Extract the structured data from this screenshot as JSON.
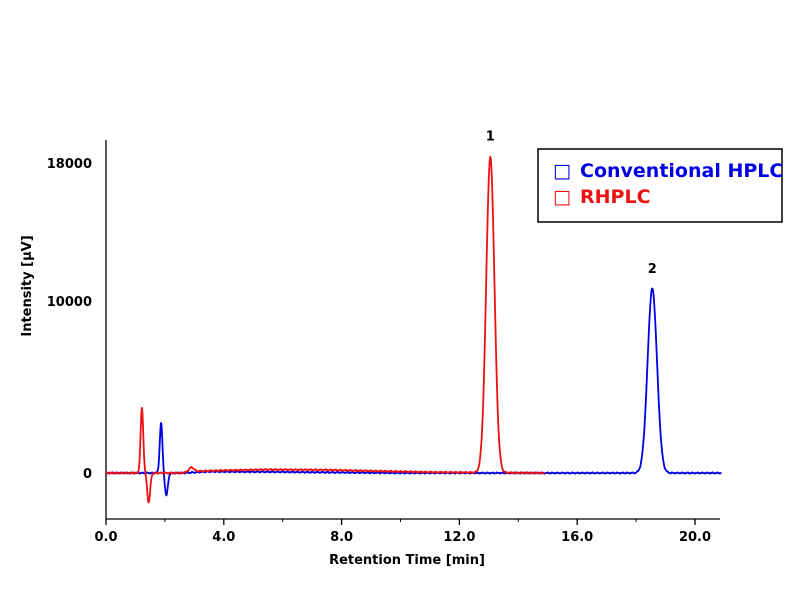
{
  "chart_data": {
    "type": "line",
    "xlabel": "Retention Time [min]",
    "ylabel": "Intensity [µV]",
    "xlim": [
      0,
      21
    ],
    "ylim": [
      -2700,
      19500
    ],
    "x_ticks": [
      "0.0",
      "4.0",
      "8.0",
      "12.0",
      "16.0",
      "20.0"
    ],
    "y_ticks": [
      "0",
      "10000",
      "18000"
    ],
    "legend": {
      "position": "top-right",
      "marker": "□"
    },
    "series": [
      {
        "name": "Conventional HPLC",
        "color": "#0000e6",
        "x_range": [
          0,
          20.9
        ],
        "baseline_points": [
          [
            0,
            0
          ],
          [
            2.6,
            0
          ],
          [
            3.5,
            80
          ],
          [
            6,
            60
          ],
          [
            10,
            0
          ],
          [
            20.9,
            0
          ]
        ],
        "peaks": [
          {
            "rt": 1.87,
            "height": 2900,
            "width": 0.045
          },
          {
            "rt": 2.05,
            "height": -1300,
            "width": 0.05
          },
          {
            "rt": 18.55,
            "height": 10700,
            "width": 0.16
          }
        ]
      },
      {
        "name": "RHPLC",
        "color": "#ee1111",
        "x_range": [
          0,
          14.9
        ],
        "baseline_points": [
          [
            0,
            0
          ],
          [
            2.5,
            0
          ],
          [
            3,
            100
          ],
          [
            4,
            150
          ],
          [
            5.5,
            200
          ],
          [
            7.5,
            180
          ],
          [
            9,
            120
          ],
          [
            11,
            50
          ],
          [
            14.9,
            0
          ]
        ],
        "peaks": [
          {
            "rt": 1.22,
            "height": 3800,
            "width": 0.045
          },
          {
            "rt": 1.45,
            "height": -1700,
            "width": 0.05
          },
          {
            "rt": 2.9,
            "height": 250,
            "width": 0.08
          },
          {
            "rt": 13.05,
            "height": 18300,
            "width": 0.14
          }
        ]
      }
    ],
    "annotations": [
      {
        "text": "1",
        "x": 13.05,
        "y": 19300
      },
      {
        "text": "2",
        "x": 18.55,
        "y": 11600
      }
    ]
  }
}
